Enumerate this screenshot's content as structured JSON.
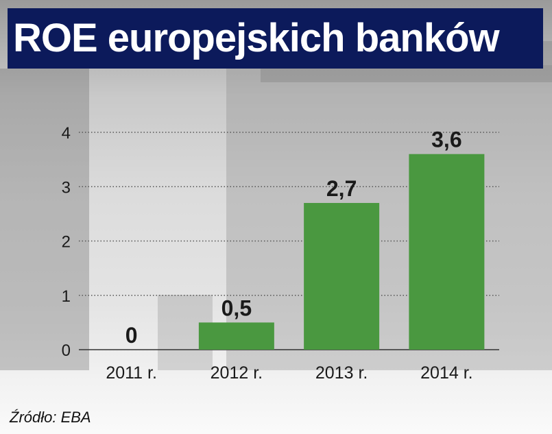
{
  "title": "ROE europejskich banków",
  "source": "Źródło: EBA",
  "colors": {
    "bar": "#4a9840",
    "title_bg": "#0c1a5b",
    "title_text": "#ffffff",
    "text": "#1a1a1a",
    "grid": "#555555"
  },
  "chart_data": {
    "type": "bar",
    "title": "ROE europejskich banków",
    "categories": [
      "2011 r.",
      "2012 r.",
      "2013 r.",
      "2014 r."
    ],
    "values": [
      0,
      0.5,
      2.7,
      3.6
    ],
    "data_labels": [
      "0",
      "0,5",
      "2,7",
      "3,6"
    ],
    "yticks": [
      0,
      1,
      2,
      3,
      4
    ],
    "ytick_labels": [
      "0",
      "1",
      "2",
      "3",
      "4"
    ],
    "ylim": [
      0,
      4
    ],
    "xlabel": "",
    "ylabel": "",
    "grid": "horizontal-dotted",
    "legend": "none"
  }
}
